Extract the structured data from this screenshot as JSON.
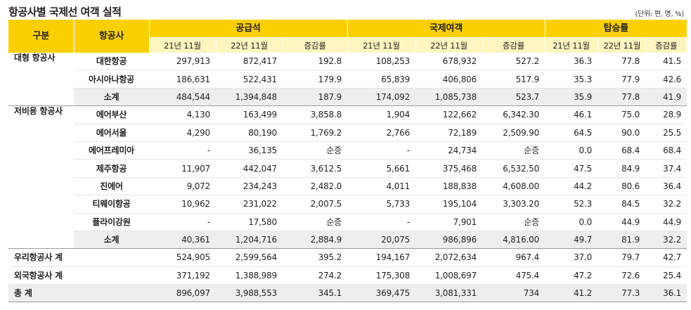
{
  "title": "항공사별 국제선 여객 실적",
  "unit": "(단위: 편, 명, %)",
  "header": {
    "category": "구분",
    "airline": "항공사",
    "groups": [
      "공급석",
      "국제여객",
      "탑승률"
    ],
    "sub": [
      "21년 11월",
      "22년 11월",
      "증감률"
    ]
  },
  "groups": [
    {
      "category": "대형 항공사",
      "rows": [
        {
          "name": "대한항공",
          "v": [
            "297,913",
            "872,417",
            "192.8",
            "108,253",
            "678,932",
            "527.2",
            "36.3",
            "77.8",
            "41.5"
          ]
        },
        {
          "name": "아시아나항공",
          "v": [
            "186,631",
            "522,431",
            "179.9",
            "65,839",
            "406,806",
            "517.9",
            "35.3",
            "77.9",
            "42.6"
          ]
        }
      ],
      "subtotal": {
        "name": "소계",
        "v": [
          "484,544",
          "1,394,848",
          "187.9",
          "174,092",
          "1,085,738",
          "523.7",
          "35.9",
          "77.8",
          "41.9"
        ]
      }
    },
    {
      "category": "저비용 항공사",
      "rows": [
        {
          "name": "에어부산",
          "v": [
            "4,130",
            "163,499",
            "3,858.8",
            "1,904",
            "122,662",
            "6,342.30",
            "46.1",
            "75.0",
            "28.9"
          ]
        },
        {
          "name": "에어서울",
          "v": [
            "4,290",
            "80,190",
            "1,769.2",
            "2,766",
            "72,189",
            "2,509.90",
            "64.5",
            "90.0",
            "25.5"
          ]
        },
        {
          "name": "에어프레미아",
          "v": [
            "-",
            "36,135",
            "순증",
            "-",
            "24,734",
            "순증",
            "0.0",
            "68.4",
            "68.4"
          ]
        },
        {
          "name": "제주항공",
          "v": [
            "11,907",
            "442,047",
            "3,612.5",
            "5,661",
            "375,468",
            "6,532.50",
            "47.5",
            "84.9",
            "37.4"
          ]
        },
        {
          "name": "진에어",
          "v": [
            "9,072",
            "234,243",
            "2,482.0",
            "4,011",
            "188,838",
            "4,608.00",
            "44.2",
            "80.6",
            "36.4"
          ]
        },
        {
          "name": "티웨이항공",
          "v": [
            "10,962",
            "231,022",
            "2,007.5",
            "5,733",
            "195,104",
            "3,303.20",
            "52.3",
            "84.5",
            "32.2"
          ]
        },
        {
          "name": "플라이강원",
          "v": [
            "-",
            "17,580",
            "순증",
            "-",
            "7,901",
            "순증",
            "0.0",
            "44.9",
            "44.9"
          ]
        }
      ],
      "subtotal": {
        "name": "소계",
        "v": [
          "40,361",
          "1,204,716",
          "2,884.9",
          "20,075",
          "986,896",
          "4,816.00",
          "49.7",
          "81.9",
          "32.2"
        ]
      }
    }
  ],
  "totals": [
    {
      "name": "우리항공사 계",
      "v": [
        "524,905",
        "2,599,564",
        "395.2",
        "194,167",
        "2,072,634",
        "967.4",
        "37.0",
        "79.7",
        "42.7"
      ]
    },
    {
      "name": "외국항공사 계",
      "v": [
        "371,192",
        "1,388,989",
        "274.2",
        "175,308",
        "1,008,697",
        "475.4",
        "47.2",
        "72.6",
        "25.4"
      ]
    },
    {
      "name": "총 계",
      "v": [
        "896,097",
        "3,988,553",
        "345.1",
        "369,475",
        "3,081,331",
        "734",
        "41.2",
        "77.3",
        "36.1"
      ]
    }
  ]
}
